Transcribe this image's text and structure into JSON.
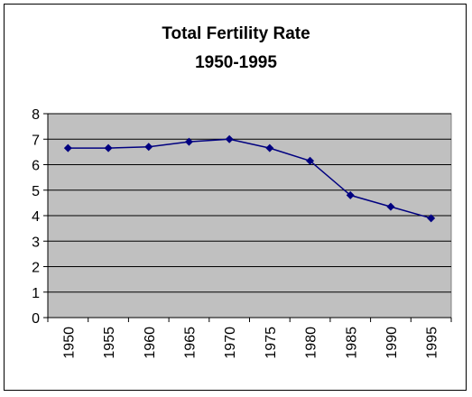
{
  "chart_data": {
    "type": "line",
    "title": "Total Fertility Rate",
    "subtitle": "1950-1995",
    "xlabel": "",
    "ylabel": "",
    "categories": [
      "1950",
      "1955",
      "1960",
      "1965",
      "1970",
      "1975",
      "1980",
      "1985",
      "1990",
      "1995"
    ],
    "series": [
      {
        "values": [
          6.65,
          6.65,
          6.7,
          6.9,
          7.0,
          6.65,
          6.15,
          4.8,
          4.35,
          3.9
        ]
      }
    ],
    "ylim": [
      0,
      8
    ],
    "yticks": [
      "0",
      "1",
      "2",
      "3",
      "4",
      "5",
      "6",
      "7",
      "8"
    ],
    "grid": true,
    "legend": "none",
    "colors": {
      "plot_background": "#c0c0c0",
      "line": "#000080",
      "grid": "#000000"
    }
  }
}
